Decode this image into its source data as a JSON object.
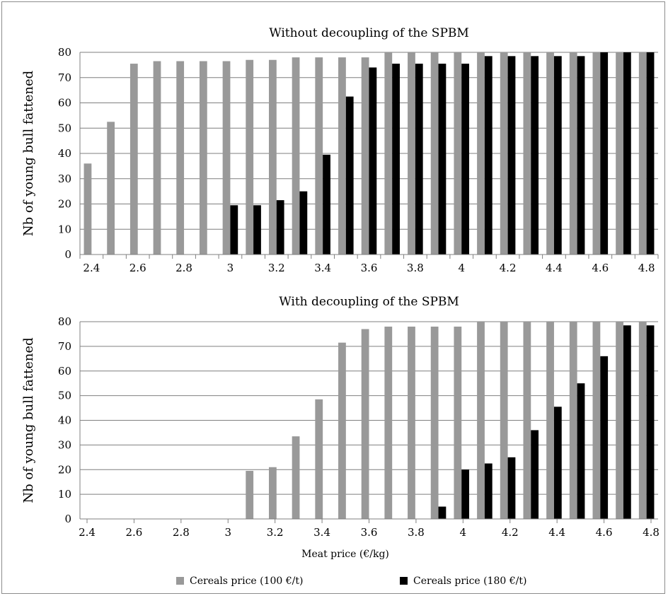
{
  "colors": {
    "series1": "#999999",
    "series2": "#000000",
    "grid": "#7f7f7f",
    "axis": "#808080",
    "text": "#000000"
  },
  "xlabel": "Meat price (€/kg)",
  "legend": {
    "placement": "bottom",
    "entries": [
      "Cereals price (100 €/t)",
      "Cereals price (180 €/t)"
    ]
  },
  "chart_data": [
    {
      "type": "bar",
      "title": "Without decoupling of the SPBM",
      "ylabel": "Nb of young bull fattened",
      "xlabel": "",
      "ylim": [
        0,
        80
      ],
      "yticks": [
        0,
        10,
        20,
        30,
        40,
        50,
        60,
        70,
        80
      ],
      "grid": true,
      "categories": [
        "2.4",
        "2.5",
        "2.6",
        "2.7",
        "2.8",
        "2.9",
        "3",
        "3.1",
        "3.2",
        "3.3",
        "3.4",
        "3.5",
        "3.6",
        "3.7",
        "3.8",
        "3.9",
        "4",
        "4.1",
        "4.2",
        "4.3",
        "4.4",
        "4.5",
        "4.6",
        "4.7",
        "4.8"
      ],
      "tick_labels": [
        "2.4",
        "",
        "2.6",
        "",
        "2.8",
        "",
        "3",
        "",
        "3.2",
        "",
        "3.4",
        "",
        "3.6",
        "",
        "3.8",
        "",
        "4",
        "",
        "4.2",
        "",
        "4.4",
        "",
        "4.6",
        "",
        "4.8"
      ],
      "series": [
        {
          "name": "Cereals price (100 €/t)",
          "values": [
            36,
            52.5,
            75.5,
            76.5,
            76.5,
            76.5,
            76.5,
            77,
            77,
            78,
            78,
            78,
            78,
            80,
            80,
            80,
            80,
            80,
            80,
            80,
            80,
            80,
            80,
            80,
            80
          ]
        },
        {
          "name": "Cereals price (180 €/t)",
          "values": [
            0,
            0,
            0,
            0,
            0,
            0,
            19.5,
            19.5,
            21.5,
            25,
            39.5,
            62.5,
            74,
            75.5,
            75.5,
            75.5,
            75.5,
            78.5,
            78.5,
            78.5,
            78.5,
            78.5,
            80,
            80,
            80
          ]
        }
      ]
    },
    {
      "type": "bar",
      "title": "With decoupling of the SPBM",
      "ylabel": "Nb of young bull fattened",
      "xlabel": "Meat price (€/kg)",
      "ylim": [
        0,
        80
      ],
      "yticks": [
        0,
        10,
        20,
        30,
        40,
        50,
        60,
        70,
        80
      ],
      "grid": true,
      "categories": [
        "2.4",
        "2.5",
        "2.6",
        "2.7",
        "2.8",
        "2.9",
        "3",
        "3.1",
        "3.2",
        "3.3",
        "3.4",
        "3.5",
        "3.6",
        "3.7",
        "3.8",
        "3.9",
        "4",
        "4.1",
        "4.2",
        "4.3",
        "4.4",
        "4.5",
        "4.6",
        "4.7",
        "4.8"
      ],
      "tick_labels": [
        "2.4",
        "2.6",
        "2.8",
        "3",
        "3.2",
        "3.4",
        "3.6",
        "3.8",
        "4",
        "4.2",
        "4.4",
        "4.6",
        "4.8"
      ],
      "series": [
        {
          "name": "Cereals price (100 €/t)",
          "values": [
            0,
            0,
            0,
            0,
            0,
            0,
            0,
            19.5,
            21,
            33.5,
            48.5,
            71.5,
            77,
            78,
            78,
            78,
            78,
            80,
            80,
            80,
            80,
            80,
            80,
            80,
            80
          ]
        },
        {
          "name": "Cereals price (180 €/t)",
          "values": [
            0,
            0,
            0,
            0,
            0,
            0,
            0,
            0,
            0,
            0,
            0,
            0,
            0,
            0,
            0,
            5,
            20,
            22.5,
            25,
            36,
            45.5,
            55,
            66,
            78.5,
            78.5
          ]
        }
      ]
    }
  ]
}
